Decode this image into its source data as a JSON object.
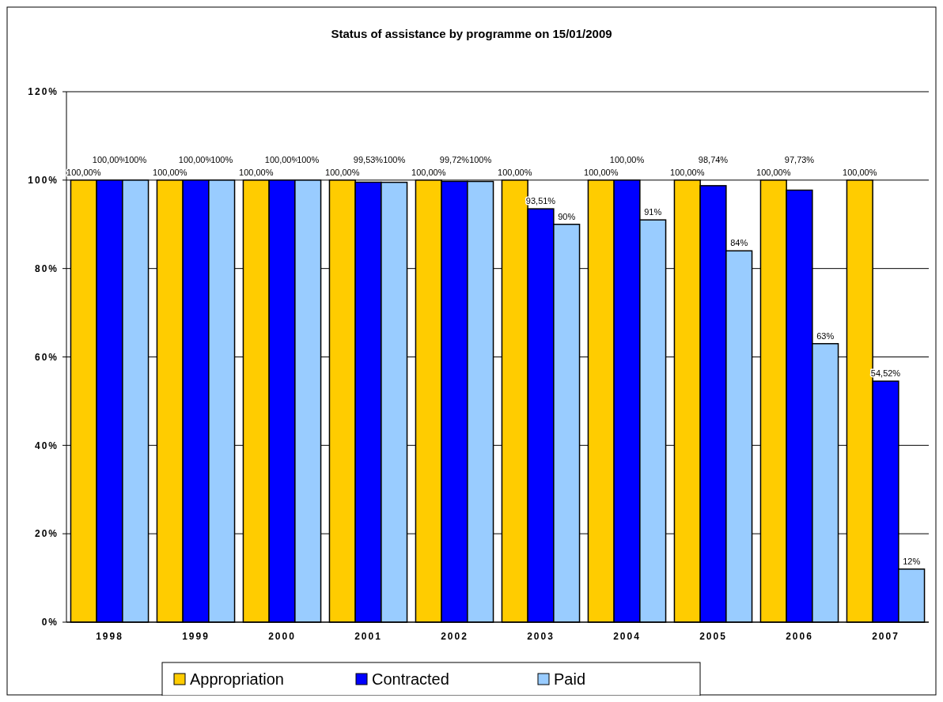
{
  "chart_data": {
    "type": "bar",
    "title": "Status of assistance by programme on 15/01/2009",
    "categories": [
      "1998",
      "1999",
      "2000",
      "2001",
      "2002",
      "2003",
      "2004",
      "2005",
      "2006",
      "2007"
    ],
    "series": [
      {
        "name": "Appropriation",
        "color": "#ffcc00",
        "values": [
          100,
          100,
          100,
          100,
          100,
          100,
          100,
          100,
          100,
          100
        ],
        "value_labels": [
          "100,00%",
          "100,00%",
          "100,00%",
          "100,00%",
          "100,00%",
          "100,00%",
          "100,00%",
          "100,00%",
          "100,00%",
          "100,00%"
        ]
      },
      {
        "name": "Contracted",
        "color": "#0000ff",
        "values": [
          100,
          100,
          100,
          99.53,
          99.72,
          93.51,
          100,
          98.74,
          97.73,
          54.52
        ],
        "value_labels": [
          "100,00%",
          "100,00%",
          "100,00%",
          "99,53%",
          "99,72%",
          "93,51%",
          "100,00%",
          "98,74%",
          "97,73%",
          "54,52%"
        ]
      },
      {
        "name": "Paid",
        "color": "#99ccff",
        "values": [
          100,
          100,
          100,
          99.5,
          99.7,
          90,
          91,
          84,
          63,
          12
        ],
        "value_labels": [
          "100%",
          "100%",
          "100%",
          "100%",
          "100%",
          "90%",
          "91%",
          "84%",
          "63%",
          "12%"
        ]
      }
    ],
    "ylim": [
      0,
      120
    ],
    "yticks": [
      {
        "value": 0,
        "label": "0%"
      },
      {
        "value": 20,
        "label": "20%"
      },
      {
        "value": 40,
        "label": "40%"
      },
      {
        "value": 60,
        "label": "60%"
      },
      {
        "value": 80,
        "label": "80%"
      },
      {
        "value": 100,
        "label": "100%"
      },
      {
        "value": 120,
        "label": "120%"
      }
    ],
    "grid": "y",
    "legend": "bottom"
  }
}
